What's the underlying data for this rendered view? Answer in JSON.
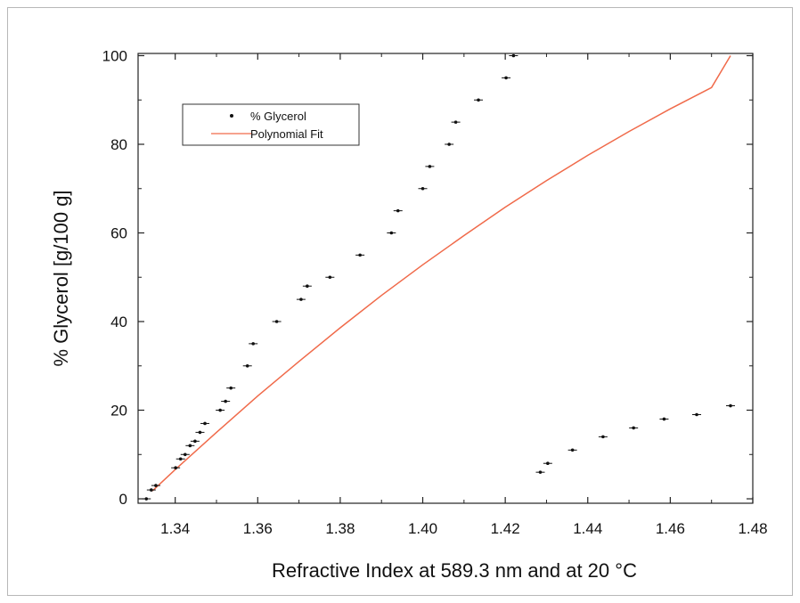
{
  "chart_data": {
    "type": "scatter",
    "title": "",
    "xlabel": "Refractive Index at 589.3 nm and at 20 °C",
    "ylabel": "% Glycerol [g/100 g]",
    "xlim": [
      1.331,
      1.48
    ],
    "ylim": [
      -1,
      100.5
    ],
    "x_ticks": [
      "1.34",
      "1.36",
      "1.38",
      "1.40",
      "1.42",
      "1.44",
      "1.46",
      "1.48"
    ],
    "y_ticks": [
      "0",
      "20",
      "40",
      "60",
      "80",
      "100"
    ],
    "grid": false,
    "legend": {
      "position": "top-left",
      "entries": [
        "% Glycerol",
        "Polynomial Fit"
      ]
    },
    "colors": {
      "points": "#111111",
      "fit": "#f06a4a",
      "axes": "#222222"
    },
    "series": [
      {
        "name": "% Glycerol",
        "kind": "points",
        "x": [
          1.333,
          1.3342,
          1.3353,
          1.3401,
          1.3413,
          1.3424,
          1.3436,
          1.3448,
          1.346,
          1.3472,
          1.3509,
          1.3522,
          1.3535,
          1.3575,
          1.3589,
          1.3646,
          1.3705,
          1.372,
          1.3775,
          1.3848,
          1.3924,
          1.394,
          1.4,
          1.4017,
          1.4064,
          1.408,
          1.4135,
          1.4202,
          1.422,
          1.4285,
          1.4303,
          1.4363,
          1.4437,
          1.4511,
          1.4585,
          1.4664,
          1.4746
        ],
        "y": [
          0,
          2,
          3,
          7,
          9,
          10,
          12,
          13,
          15,
          17,
          20,
          22,
          25,
          30,
          35,
          40,
          45,
          48,
          50,
          55,
          60,
          65,
          70,
          75,
          80,
          85,
          90,
          95,
          100,
          6,
          8,
          11,
          14,
          16,
          18,
          19,
          21
        ]
      },
      {
        "name": "Polynomial Fit",
        "kind": "line",
        "x": [
          1.3345,
          1.34,
          1.35,
          1.36,
          1.37,
          1.38,
          1.39,
          1.4,
          1.41,
          1.42,
          1.43,
          1.44,
          1.45,
          1.46,
          1.47,
          1.4746
        ],
        "y": [
          1.8,
          6.6,
          15.0,
          23.2,
          31.0,
          38.6,
          45.9,
          52.8,
          59.4,
          65.8,
          71.8,
          77.5,
          82.9,
          88.0,
          92.8,
          100
        ]
      }
    ]
  }
}
